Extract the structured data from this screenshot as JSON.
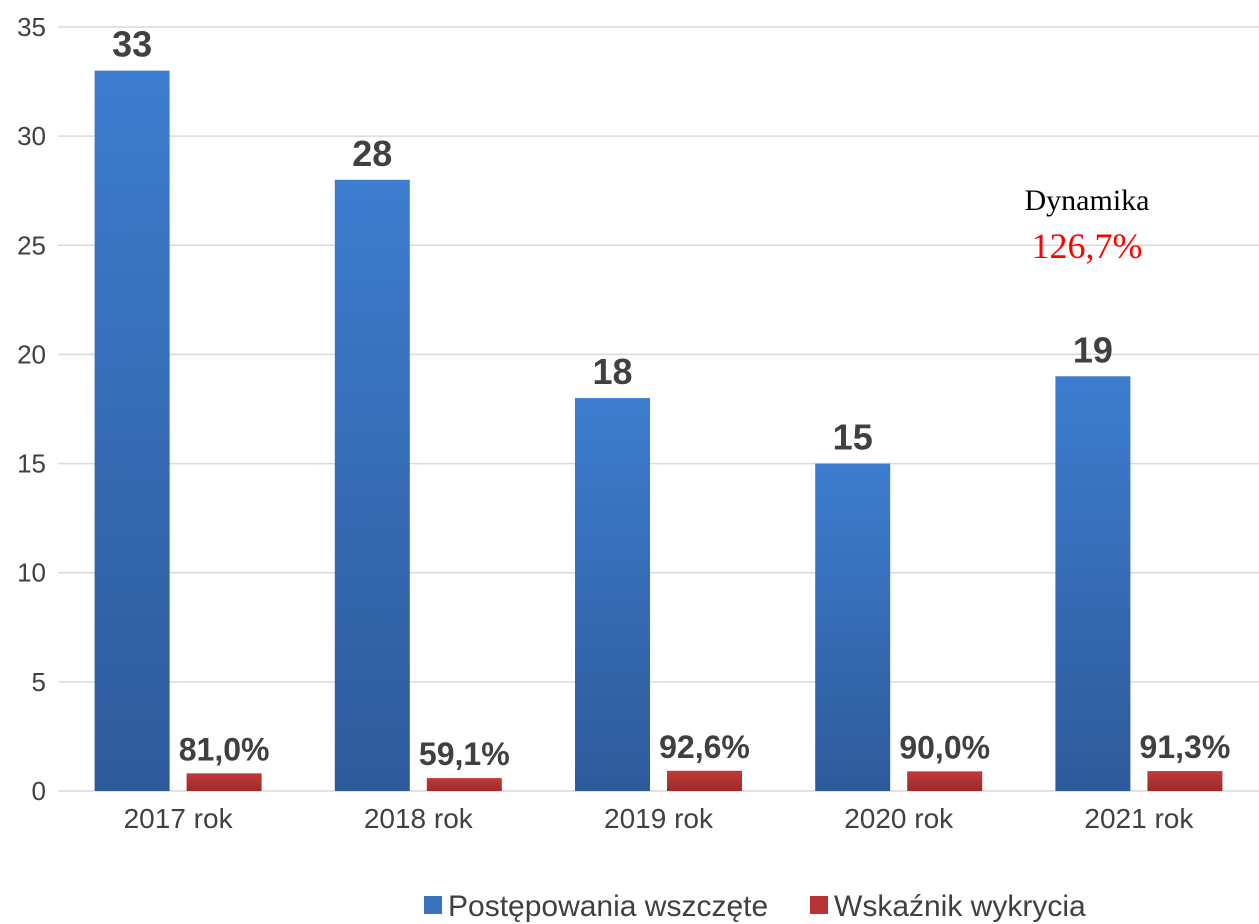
{
  "chart_data": {
    "type": "bar",
    "categories": [
      "2017 rok",
      "2018 rok",
      "2019 rok",
      "2020 rok",
      "2021 rok"
    ],
    "series": [
      {
        "name": "Postępowania wszczęte",
        "values": [
          33,
          28,
          18,
          15,
          19
        ],
        "labels": [
          "33",
          "28",
          "18",
          "15",
          "19"
        ],
        "color": "#3a72c0"
      },
      {
        "name": "Wskaźnik wykrycia",
        "values": [
          0.81,
          0.591,
          0.926,
          0.9,
          0.913
        ],
        "labels": [
          "81,0%",
          "59,1%",
          "92,6%",
          "90,0%",
          "91,3%"
        ],
        "color": "#b83434"
      }
    ],
    "ylim": [
      0,
      35
    ],
    "yticks": [
      0,
      5,
      10,
      15,
      20,
      25,
      30,
      35
    ],
    "grid": true,
    "legend": "bottom",
    "annotation": {
      "title": "Dynamika",
      "value": "126,7%",
      "value_color": "#ff0000"
    }
  }
}
